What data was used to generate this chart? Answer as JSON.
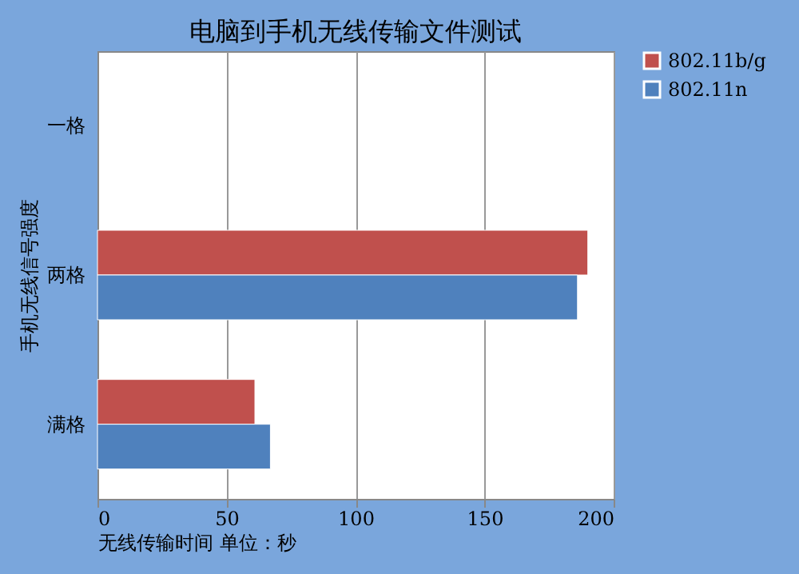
{
  "chart_data": {
    "type": "bar",
    "orientation": "horizontal",
    "title": "电脑到手机无线传输文件测试",
    "xlabel": "无线传输时间  单位：秒",
    "ylabel": "手机无线信号强度",
    "categories": [
      "一格",
      "两格",
      "满格"
    ],
    "series": [
      {
        "name": "802.11b/g",
        "color": "#c0504d",
        "values": [
          null,
          190,
          61
        ]
      },
      {
        "name": "802.11n",
        "color": "#4f81bd",
        "values": [
          null,
          186,
          67
        ]
      }
    ],
    "xlim": [
      0,
      200
    ],
    "xticks": [
      0,
      50,
      100,
      150,
      200
    ],
    "grid": "x",
    "legend": "right"
  }
}
